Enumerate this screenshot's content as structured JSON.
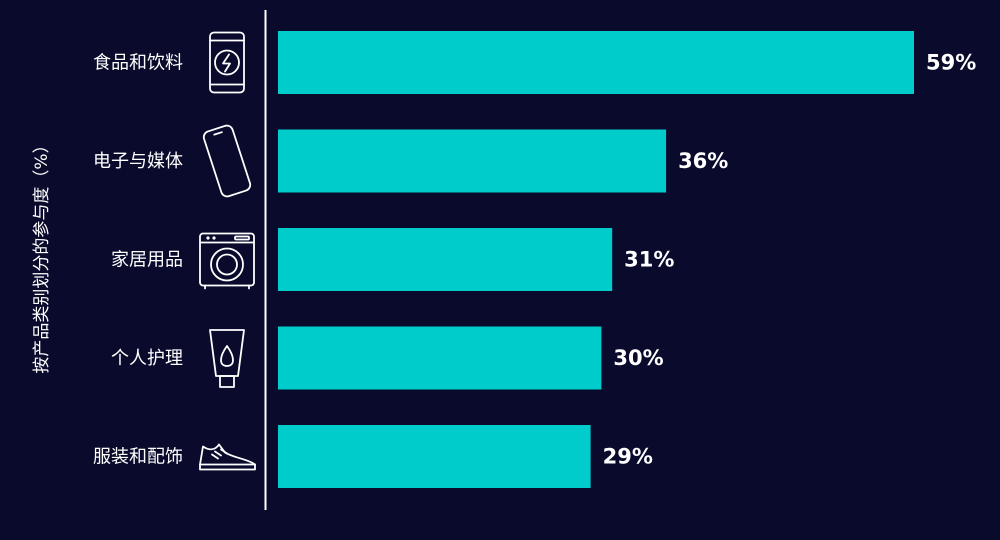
{
  "colors": {
    "background": "#0a0b2c",
    "bar": "#00cccc",
    "text": "#ffffff",
    "axis_line": "#ffffff"
  },
  "chart_data": {
    "type": "bar",
    "orientation": "horizontal",
    "ylabel": "按产品类别划分的参与度（%）",
    "xlim": [
      0,
      100
    ],
    "grid": false,
    "categories": [
      "食品和饮料",
      "电子与媒体",
      "家居用品",
      "个人护理",
      "服装和配饰"
    ],
    "icons": [
      "battery-bolt-icon",
      "smartphone-icon",
      "washing-machine-icon",
      "tube-drop-icon",
      "sneaker-icon"
    ],
    "values": [
      59,
      36,
      31,
      30,
      29
    ],
    "value_labels": [
      "59%",
      "36%",
      "31%",
      "30%",
      "29%"
    ]
  }
}
